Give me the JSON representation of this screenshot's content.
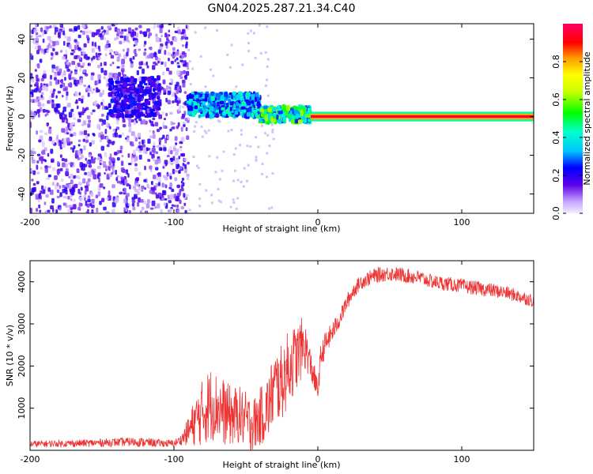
{
  "chart_data": [
    {
      "type": "heatmap",
      "title": "GN04.2025.287.21.34.C40",
      "xlabel": "Height of straight line (km)",
      "ylabel": "Frequency (Hz)",
      "xlim": [
        -200,
        150
      ],
      "ylim": [
        -50,
        48
      ],
      "xticks": [
        -200,
        -100,
        0,
        100
      ],
      "xtick_labels": [
        "-200",
        "-100",
        "0",
        "100"
      ],
      "yticks": [
        -40,
        -20,
        0,
        20,
        40
      ],
      "ytick_labels": [
        "-40",
        "-20",
        "0",
        "20",
        "40"
      ],
      "colorbar": {
        "label": "Normalized spectral amplitude",
        "range": [
          0.0,
          1.0
        ],
        "ticks": [
          0.0,
          0.2,
          0.4,
          0.6,
          0.8
        ],
        "tick_labels": [
          "0.0",
          "0.2",
          "0.4",
          "0.6",
          "0.8"
        ]
      },
      "regions": [
        {
          "x_range": [
            -200,
            -90
          ],
          "freq_range": [
            -50,
            48
          ],
          "amplitude": 0.12,
          "description_class": "noise"
        },
        {
          "x_range": [
            -145,
            -110
          ],
          "freq_range": [
            0,
            20
          ],
          "amplitude": 0.2
        },
        {
          "x_range": [
            -90,
            -40
          ],
          "freq_range": [
            0,
            12
          ],
          "amplitude": 0.35
        },
        {
          "x_range": [
            -40,
            -5
          ],
          "freq_range": [
            -3,
            5
          ],
          "amplitude": 0.5
        },
        {
          "x_range": [
            -5,
            150
          ],
          "freq_range": [
            -1,
            1
          ],
          "amplitude": 0.95
        }
      ]
    },
    {
      "type": "line",
      "xlabel": "Height of straight line (km)",
      "ylabel": "SNR (10 * v/v)",
      "xlim": [
        -200,
        150
      ],
      "ylim": [
        0,
        4500
      ],
      "xticks": [
        -200,
        -100,
        0,
        100
      ],
      "xtick_labels": [
        "-200",
        "-100",
        "0",
        "100"
      ],
      "yticks": [
        1000,
        2000,
        3000,
        4000
      ],
      "ytick_labels": [
        "1000",
        "2000",
        "3000",
        "4000"
      ],
      "series": [
        {
          "name": "SNR",
          "color": "#ee3333",
          "x": [
            -200,
            -180,
            -160,
            -140,
            -130,
            -120,
            -110,
            -100,
            -95,
            -90,
            -85,
            -80,
            -75,
            -70,
            -65,
            -60,
            -55,
            -50,
            -45,
            -40,
            -35,
            -30,
            -25,
            -20,
            -15,
            -10,
            -8,
            -5,
            -3,
            -1,
            0,
            2,
            5,
            10,
            15,
            20,
            25,
            30,
            40,
            50,
            60,
            70,
            80,
            90,
            100,
            110,
            120,
            130,
            140,
            150
          ],
          "values": [
            150,
            160,
            170,
            190,
            200,
            190,
            170,
            160,
            250,
            450,
            700,
            900,
            1100,
            1050,
            900,
            800,
            850,
            700,
            600,
            800,
            1000,
            1500,
            1600,
            2000,
            2200,
            2500,
            2400,
            2000,
            1800,
            1500,
            1400,
            2200,
            2500,
            2800,
            3100,
            3500,
            3800,
            4000,
            4150,
            4200,
            4150,
            4100,
            4000,
            3950,
            3900,
            3850,
            3800,
            3750,
            3650,
            3550
          ],
          "noise": [
            80,
            80,
            90,
            100,
            110,
            110,
            90,
            90,
            120,
            350,
            600,
            800,
            900,
            800,
            800,
            700,
            700,
            700,
            650,
            700,
            800,
            900,
            900,
            900,
            800,
            700,
            500,
            400,
            350,
            300,
            250,
            300,
            300,
            250,
            200,
            200,
            180,
            180,
            180,
            180,
            180,
            180,
            170,
            170,
            170,
            170,
            170,
            160,
            160,
            160
          ]
        }
      ]
    }
  ]
}
